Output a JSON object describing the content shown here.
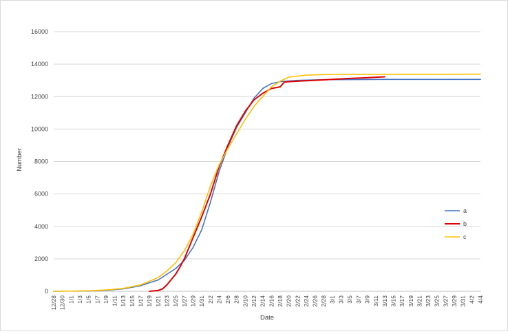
{
  "chart_data": {
    "type": "line",
    "title": "",
    "xlabel": "Date",
    "ylabel": "Number",
    "ylim": [
      0,
      16000
    ],
    "y_ticks": [
      "0",
      "2000",
      "4000",
      "6000",
      "8000",
      "10000",
      "12000",
      "14000",
      "16000"
    ],
    "x_tick_labels": [
      "12/28",
      "12/30",
      "1/1",
      "1/3",
      "1/5",
      "1/7",
      "1/9",
      "1/11",
      "1/13",
      "1/15",
      "1/17",
      "1/19",
      "1/21",
      "1/23",
      "1/25",
      "1/27",
      "1/29",
      "1/31",
      "2/2",
      "2/4",
      "2/6",
      "2/8",
      "2/10",
      "2/12",
      "2/14",
      "2/16",
      "2/18",
      "2/20",
      "2/22",
      "2/24",
      "2/26",
      "2/28",
      "3/1",
      "3/3",
      "3/5",
      "3/7",
      "3/9",
      "3/11",
      "3/13",
      "3/15",
      "3/17",
      "3/19",
      "3/21",
      "3/23",
      "3/25",
      "3/27",
      "3/29",
      "3/31",
      "4/2",
      "4/4"
    ],
    "grid": "horizontal",
    "legend_position": "right",
    "series": [
      {
        "name": "a",
        "color": "#4472C4",
        "points": [
          [
            "12/28",
            0
          ],
          [
            "1/5",
            20
          ],
          [
            "1/9",
            60
          ],
          [
            "1/13",
            150
          ],
          [
            "1/17",
            350
          ],
          [
            "1/21",
            700
          ],
          [
            "1/25",
            1400
          ],
          [
            "1/27",
            1900
          ],
          [
            "1/29",
            2700
          ],
          [
            "1/31",
            3800
          ],
          [
            "2/2",
            5500
          ],
          [
            "2/4",
            7400
          ],
          [
            "2/6",
            8900
          ],
          [
            "2/8",
            10100
          ],
          [
            "2/10",
            11000
          ],
          [
            "2/12",
            11900
          ],
          [
            "2/14",
            12500
          ],
          [
            "2/16",
            12800
          ],
          [
            "2/18",
            12920
          ],
          [
            "2/22",
            13000
          ],
          [
            "2/28",
            13040
          ],
          [
            "3/13",
            13060
          ],
          [
            "4/4",
            13060
          ]
        ]
      },
      {
        "name": "b",
        "color": "#E00000",
        "points": [
          [
            "1/19",
            0
          ],
          [
            "1/21",
            50
          ],
          [
            "1/22",
            150
          ],
          [
            "1/23",
            400
          ],
          [
            "1/25",
            1050
          ],
          [
            "1/26",
            1500
          ],
          [
            "1/27",
            2000
          ],
          [
            "1/29",
            3300
          ],
          [
            "1/31",
            4600
          ],
          [
            "2/2",
            6000
          ],
          [
            "2/4",
            7700
          ],
          [
            "2/6",
            9000
          ],
          [
            "2/8",
            10200
          ],
          [
            "2/10",
            11100
          ],
          [
            "2/12",
            11800
          ],
          [
            "2/14",
            12200
          ],
          [
            "2/16",
            12500
          ],
          [
            "2/18",
            12600
          ],
          [
            "2/19",
            12900
          ],
          [
            "2/22",
            12950
          ],
          [
            "2/28",
            13030
          ],
          [
            "3/1",
            13060
          ],
          [
            "3/5",
            13120
          ],
          [
            "3/9",
            13160
          ],
          [
            "3/13",
            13220
          ]
        ]
      },
      {
        "name": "c",
        "color": "#FFC000",
        "points": [
          [
            "12/28",
            0
          ],
          [
            "1/5",
            30
          ],
          [
            "1/9",
            80
          ],
          [
            "1/13",
            180
          ],
          [
            "1/17",
            400
          ],
          [
            "1/21",
            850
          ],
          [
            "1/23",
            1250
          ],
          [
            "1/25",
            1750
          ],
          [
            "1/27",
            2500
          ],
          [
            "1/29",
            3500
          ],
          [
            "1/31",
            4900
          ],
          [
            "2/2",
            6500
          ],
          [
            "2/4",
            7800
          ],
          [
            "2/6",
            8800
          ],
          [
            "2/8",
            9700
          ],
          [
            "2/10",
            10600
          ],
          [
            "2/12",
            11400
          ],
          [
            "2/14",
            12000
          ],
          [
            "2/16",
            12600
          ],
          [
            "2/18",
            12950
          ],
          [
            "2/20",
            13200
          ],
          [
            "2/24",
            13320
          ],
          [
            "3/1",
            13370
          ],
          [
            "4/4",
            13380
          ]
        ]
      }
    ]
  }
}
